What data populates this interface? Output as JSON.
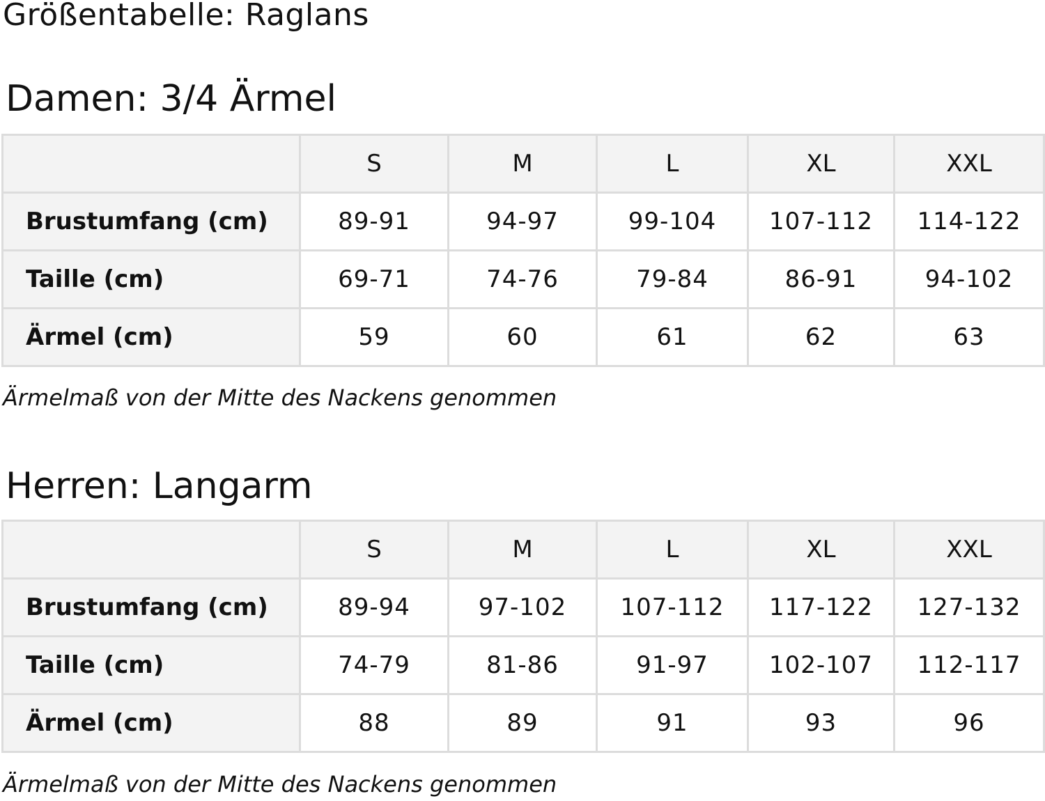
{
  "title": "Größentabelle: Raglans",
  "sections": [
    {
      "heading": "Damen: 3/4 Ärmel",
      "sizes": [
        "S",
        "M",
        "L",
        "XL",
        "XXL"
      ],
      "rows": [
        {
          "label": "Brustumfang (cm)",
          "values": [
            "89-91",
            "94-97",
            "99-104",
            "107-112",
            "114-122"
          ]
        },
        {
          "label": "Taille (cm)",
          "values": [
            "69-71",
            "74-76",
            "79-84",
            "86-91",
            "94-102"
          ]
        },
        {
          "label": "Ärmel (cm)",
          "values": [
            "59",
            "60",
            "61",
            "62",
            "63"
          ]
        }
      ],
      "note": "Ärmelmaß von der Mitte des Nackens genommen"
    },
    {
      "heading": "Herren: Langarm",
      "sizes": [
        "S",
        "M",
        "L",
        "XL",
        "XXL"
      ],
      "rows": [
        {
          "label": "Brustumfang (cm)",
          "values": [
            "89-94",
            "97-102",
            "107-112",
            "117-122",
            "127-132"
          ]
        },
        {
          "label": "Taille (cm)",
          "values": [
            "74-79",
            "81-86",
            "91-97",
            "102-107",
            "112-117"
          ]
        },
        {
          "label": "Ärmel (cm)",
          "values": [
            "88",
            "89",
            "91",
            "93",
            "96"
          ]
        }
      ],
      "note": "Ärmelmaß von der Mitte des Nackens genommen"
    }
  ]
}
